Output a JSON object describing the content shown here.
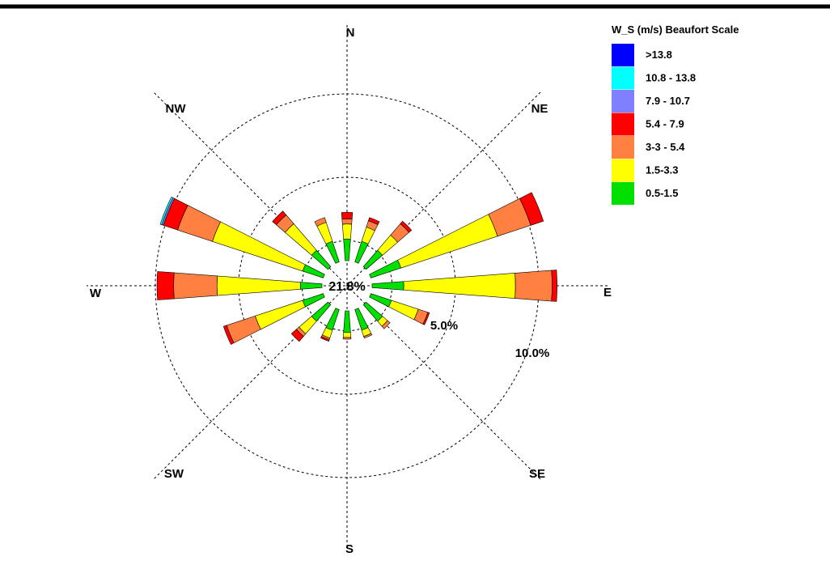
{
  "chart_data": {
    "type": "wind-rose",
    "center_label": "21.8%",
    "directions": [
      "N",
      "NE",
      "E",
      "SE",
      "S",
      "SW",
      "W",
      "NW"
    ],
    "rings": [
      {
        "value": 5.0,
        "label": "5.0%"
      },
      {
        "value": 10.0,
        "label": "10.0%"
      }
    ],
    "legend": {
      "title": "W_S (m/s) Beaufort Scale",
      "items": [
        {
          "label": ">13.8",
          "color": "#0000ff"
        },
        {
          "label": "10.8 - 13.8",
          "color": "#00ffff"
        },
        {
          "label": "7.9 - 10.7",
          "color": "#8080ff"
        },
        {
          "label": "5.4 - 7.9",
          "color": "#ff0000"
        },
        {
          "label": "3-3 - 5.4",
          "color": "#ff8040"
        },
        {
          "label": "1.5-3.3",
          "color": "#ffff00"
        },
        {
          "label": "0.5-1.5",
          "color": "#00e000"
        }
      ]
    },
    "series": [
      "0.5-1.5",
      "1.5-3.3",
      "3-3 - 5.4",
      "5.4 - 7.9",
      "7.9 - 10.7",
      "10.8 - 13.8",
      ">13.8"
    ],
    "sectors": [
      {
        "direction": "N",
        "cumulative": [
          1.3,
          2.2,
          2.5,
          2.9,
          2.9,
          2.9,
          2.9
        ]
      },
      {
        "direction": "NNE",
        "cumulative": [
          1.3,
          2.2,
          2.6,
          2.8,
          2.8,
          2.8,
          2.8
        ]
      },
      {
        "direction": "NE",
        "cumulative": [
          1.3,
          2.5,
          3.4,
          3.6,
          3.6,
          3.6,
          3.6
        ]
      },
      {
        "direction": "ENE",
        "cumulative": [
          1.9,
          8.0,
          10.1,
          10.9,
          10.9,
          10.9,
          10.9
        ]
      },
      {
        "direction": "E",
        "cumulative": [
          1.9,
          8.6,
          10.8,
          11.1,
          11.1,
          11.1,
          11.1
        ]
      },
      {
        "direction": "ESE",
        "cumulative": [
          1.3,
          3.0,
          3.6,
          3.7,
          3.7,
          3.7,
          3.7
        ]
      },
      {
        "direction": "SE",
        "cumulative": [
          1.3,
          1.7,
          1.9,
          1.9,
          1.9,
          1.9,
          1.9
        ]
      },
      {
        "direction": "SSE",
        "cumulative": [
          1.3,
          1.7,
          1.8,
          1.8,
          1.8,
          1.8,
          1.8
        ]
      },
      {
        "direction": "S",
        "cumulative": [
          1.3,
          1.6,
          1.7,
          1.7,
          1.7,
          1.7,
          1.7
        ]
      },
      {
        "direction": "SSW",
        "cumulative": [
          1.3,
          1.8,
          1.9,
          2.0,
          2.0,
          2.0,
          2.0
        ]
      },
      {
        "direction": "SW",
        "cumulative": [
          1.3,
          2.3,
          2.5,
          2.9,
          2.9,
          2.9,
          2.9
        ]
      },
      {
        "direction": "WSW",
        "cumulative": [
          1.3,
          4.3,
          6.1,
          6.3,
          6.3,
          6.3,
          6.3
        ]
      },
      {
        "direction": "W",
        "cumulative": [
          1.3,
          6.3,
          8.9,
          9.9,
          9.9,
          9.9,
          9.9
        ]
      },
      {
        "direction": "WNW",
        "cumulative": [
          1.3,
          7.0,
          9.2,
          10.1,
          10.2,
          10.3,
          10.3
        ]
      },
      {
        "direction": "NW",
        "cumulative": [
          1.3,
          3.4,
          4.1,
          4.4,
          4.4,
          4.4,
          4.4
        ]
      },
      {
        "direction": "NNW",
        "cumulative": [
          1.3,
          2.5,
          2.8,
          2.8,
          2.8,
          2.8,
          2.8
        ]
      }
    ]
  }
}
